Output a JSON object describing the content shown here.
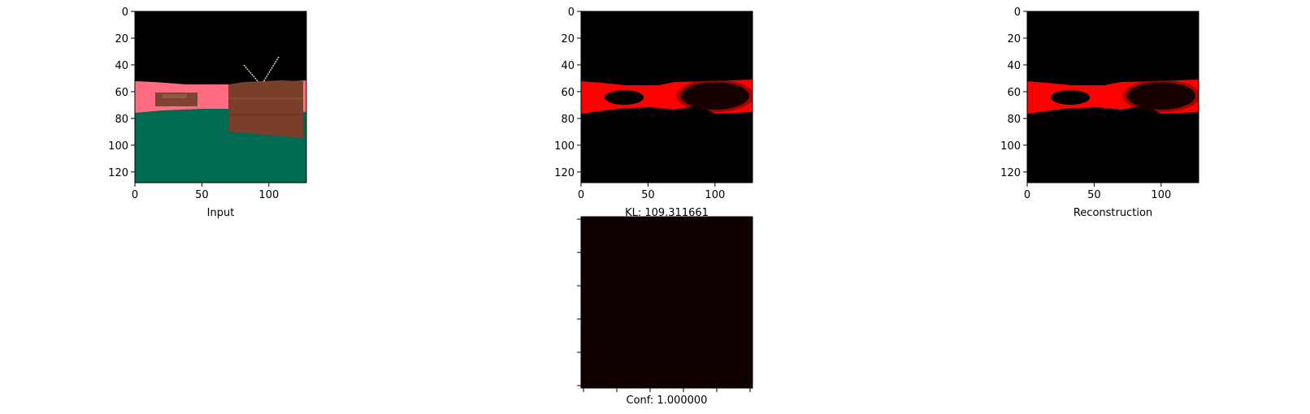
{
  "chart_data": [
    {
      "type": "image",
      "panel": "input",
      "xlabel": "Input",
      "x_ticks": [
        0,
        50,
        100
      ],
      "y_ticks": [
        0,
        20,
        40,
        60,
        80,
        100,
        120
      ],
      "xlim": [
        0,
        128
      ],
      "ylim": [
        128,
        0
      ],
      "image_description_colors": {
        "sky": "#000000",
        "wall": "#ff6b80",
        "floor": "#006b50",
        "tv": "#7a3f2b",
        "antenna": "#cccccc"
      }
    },
    {
      "type": "image",
      "panel": "mask",
      "xlabel": "KL: 109.311661",
      "x_ticks": [
        0,
        50,
        100
      ],
      "y_ticks": [
        0,
        20,
        40,
        60,
        80,
        100,
        120
      ],
      "xlim": [
        0,
        128
      ],
      "ylim": [
        128,
        0
      ],
      "image_description_colors": {
        "background": "#000000",
        "foreground": "#ff0000"
      }
    },
    {
      "type": "image",
      "panel": "reconstruction",
      "xlabel": "Reconstruction",
      "x_ticks": [
        0,
        50,
        100
      ],
      "y_ticks": [
        0,
        20,
        40,
        60,
        80,
        100,
        120
      ],
      "xlim": [
        0,
        128
      ],
      "ylim": [
        128,
        0
      ],
      "image_description_colors": {
        "background": "#000000",
        "foreground": "#ff0000"
      }
    },
    {
      "type": "heatmap",
      "panel": "confidence",
      "xlabel": "Conf: 1.000000",
      "fill_color": "#0f0000",
      "tick_marks_unlabeled": 6
    }
  ]
}
